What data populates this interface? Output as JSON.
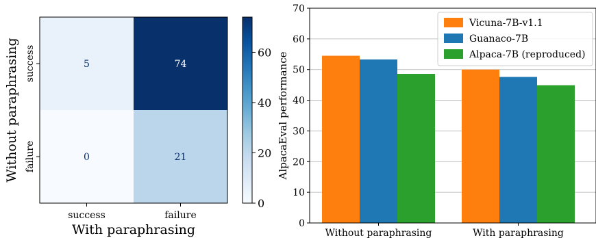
{
  "chart_data": [
    {
      "type": "heatmap",
      "xlabel": "With paraphrasing",
      "ylabel": "Without paraphrasing",
      "x_categories": [
        "success",
        "failure"
      ],
      "y_categories": [
        "success",
        "failure"
      ],
      "values": [
        [
          5,
          74
        ],
        [
          0,
          21
        ]
      ],
      "value_labels": [
        [
          "5",
          "74"
        ],
        [
          "0",
          "21"
        ]
      ],
      "colormap": "Blues",
      "colorbar": {
        "range": [
          0,
          74
        ],
        "ticks": [
          0,
          20,
          40,
          60
        ],
        "tick_labels": [
          "0",
          "20",
          "40",
          "60"
        ]
      },
      "grid": false
    },
    {
      "type": "bar",
      "categories": [
        "Without paraphrasing",
        "With paraphrasing"
      ],
      "series": [
        {
          "name": "Vicuna-7B-v1.1",
          "values": [
            54.5,
            50.0
          ],
          "color": "#ff7f0e"
        },
        {
          "name": "Guanaco-7B",
          "values": [
            53.3,
            47.6
          ],
          "color": "#1f77b4"
        },
        {
          "name": "Alpaca-7B (reproduced)",
          "values": [
            48.6,
            44.9
          ],
          "color": "#2ca02c"
        }
      ],
      "xlabel": "",
      "ylabel": "AlpacaEval performance",
      "ylim": [
        0,
        70
      ],
      "yticks": [
        0,
        10,
        20,
        30,
        40,
        50,
        60,
        70
      ],
      "ytick_labels": [
        "0",
        "10",
        "20",
        "30",
        "40",
        "50",
        "60",
        "70"
      ],
      "grid": true,
      "legend_position": "top-right"
    }
  ]
}
